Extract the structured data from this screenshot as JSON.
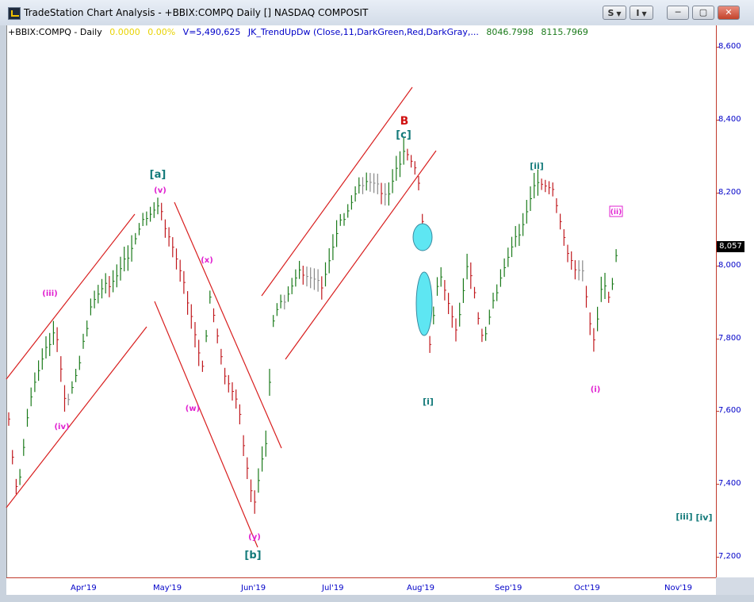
{
  "window": {
    "title": "TradeStation Chart Analysis - +BBIX:COMPQ Daily [] NASDAQ COMPOSIT",
    "buttons": {
      "s_label": "S",
      "i_label": "I"
    }
  },
  "info_line": {
    "symbol": "+BBIX:COMPQ - Daily",
    "change": "0.0000",
    "change_pct": "0.00%",
    "volume": "V=5,490,625",
    "indicator": "JK_TrendUpDw (Close,11,DarkGreen,Red,DarkGray,...",
    "value1": "8046.7998",
    "value2": "8115.7969"
  },
  "y_axis": {
    "ticks": [
      "8,600",
      "8,400",
      "8,200",
      "8,000",
      "7,800",
      "7,600",
      "7,400",
      "7,200"
    ],
    "current_price": "8,057"
  },
  "x_axis": {
    "ticks": [
      "Apr'19",
      "May'19",
      "Jun'19",
      "Jul'19",
      "Aug'19",
      "Sep'19",
      "Oct'19",
      "Nov'19"
    ]
  },
  "labels": {
    "wave_a": "[a]",
    "wave_b_bracket": "[b]",
    "wave_c": "[c]",
    "wave_B": "B",
    "wave_i_bracket": "[i]",
    "wave_ii_bracket": "[ii]",
    "wave_iii_bracket": "[iii]",
    "wave_iv_bracket": "[iv]",
    "sub_iii": "(iii)",
    "sub_iv": "(iv)",
    "sub_v": "(v)",
    "sub_w": "(w)",
    "sub_x": "(x)",
    "sub_y": "(y)",
    "sub_i": "(i)",
    "sub_ii": "(ii)"
  },
  "colors": {
    "up_bar": "#1a7a1a",
    "down_bar": "#c0181d",
    "neutral_bar": "#888888",
    "channel": "#d81e1e",
    "wave_teal": "#137a7a",
    "wave_magenta": "#e020d0",
    "wave_red": "#d01010",
    "axis_text": "#0000c8",
    "highlight": "#5ee6f2"
  }
}
